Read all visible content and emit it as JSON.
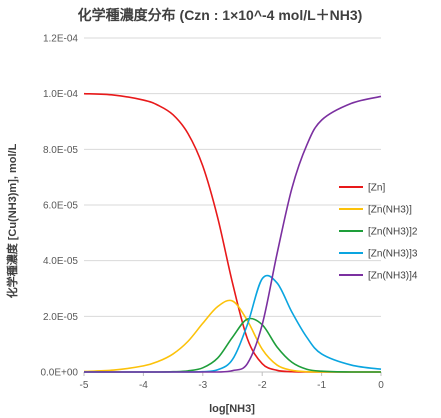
{
  "chart_data": {
    "type": "line",
    "title": "化学種濃度分布 (Czn : 1×10^-4 mol/L＋NH3)",
    "xlabel": "log[NH3]",
    "ylabel": "化学種濃度 [Cu(NH3)m], mol/L",
    "xlim": [
      -5,
      0
    ],
    "ylim": [
      0,
      0.00012
    ],
    "x_ticks": [
      -5,
      -4,
      -3,
      -2,
      -1,
      0
    ],
    "x_tick_labels": [
      "-5",
      "-4",
      "-3",
      "-2",
      "-1",
      "0"
    ],
    "y_ticks": [
      0,
      2e-05,
      4e-05,
      6e-05,
      8e-05,
      0.0001,
      0.00012
    ],
    "y_tick_labels": [
      "0.0E+00",
      "2.0E-05",
      "4.0E-05",
      "6.0E-05",
      "8.0E-05",
      "1.0E-04",
      "1.2E-04"
    ],
    "grid": "horizontal",
    "legend_position": "right",
    "series": [
      {
        "name": "[Zn]",
        "color": "#e8191a",
        "x": [
          -5,
          -4.5,
          -4,
          -3.75,
          -3.5,
          -3.25,
          -3,
          -2.75,
          -2.5,
          -2.25,
          -2,
          -1.75,
          -1.5,
          -1.25,
          -1,
          -0.5,
          0
        ],
        "values": [
          0.0001,
          9.95e-05,
          9.77e-05,
          9.58e-05,
          9.24e-05,
          8.57e-05,
          7.4e-05,
          5.55e-05,
          3.2e-05,
          1.2e-05,
          3e-06,
          6e-07,
          1e-07,
          0,
          0,
          0,
          0
        ]
      },
      {
        "name": "[Zn(NH3)]",
        "color": "#fcc20a",
        "x": [
          -5,
          -4.5,
          -4,
          -3.75,
          -3.5,
          -3.25,
          -3,
          -2.75,
          -2.5,
          -2.25,
          -2,
          -1.75,
          -1.5,
          -1.25,
          -1,
          -0.5,
          0
        ],
        "values": [
          2e-07,
          7e-07,
          2.2e-06,
          3.8e-06,
          6.5e-06,
          1.1e-05,
          1.75e-05,
          2.35e-05,
          2.55e-05,
          1.85e-05,
          8.2e-06,
          2.5e-06,
          6e-07,
          1e-07,
          0,
          0,
          0
        ]
      },
      {
        "name": "[Zn(NH3)]2",
        "color": "#1e9e3a",
        "x": [
          -5,
          -4.5,
          -4,
          -3.75,
          -3.5,
          -3.25,
          -3,
          -2.75,
          -2.5,
          -2.25,
          -2,
          -1.75,
          -1.5,
          -1.25,
          -1,
          -0.5,
          0
        ],
        "values": [
          0,
          0,
          0,
          0,
          1e-07,
          4e-07,
          1.5e-06,
          5e-06,
          1.25e-05,
          1.9e-05,
          1.7e-05,
          9e-06,
          3.5e-06,
          1e-06,
          3e-07,
          0,
          0
        ]
      },
      {
        "name": "[Zn(NH3)]3",
        "color": "#0aa5e0",
        "x": [
          -5,
          -4.5,
          -4,
          -3.75,
          -3.5,
          -3.25,
          -3,
          -2.75,
          -2.5,
          -2.25,
          -2,
          -1.75,
          -1.5,
          -1.25,
          -1,
          -0.5,
          0
        ],
        "values": [
          0,
          0,
          0,
          0,
          0,
          0,
          1e-07,
          8e-07,
          4.5e-06,
          1.7e-05,
          3.35e-05,
          3.2e-05,
          2.15e-05,
          1.25e-05,
          6.5e-06,
          2.5e-06,
          1e-06
        ]
      },
      {
        "name": "[Zn(NH3)]4",
        "color": "#7b30a0",
        "x": [
          -5,
          -4.5,
          -4,
          -3.75,
          -3.5,
          -3.25,
          -3,
          -2.75,
          -2.5,
          -2.25,
          -2,
          -1.75,
          -1.5,
          -1.25,
          -1,
          -0.5,
          0
        ],
        "values": [
          0,
          0,
          0,
          0,
          0,
          0,
          0,
          0,
          5e-07,
          3e-06,
          1.7e-05,
          4.25e-05,
          6.6e-05,
          8.15e-05,
          9.05e-05,
          9.65e-05,
          9.9e-05
        ]
      }
    ]
  }
}
